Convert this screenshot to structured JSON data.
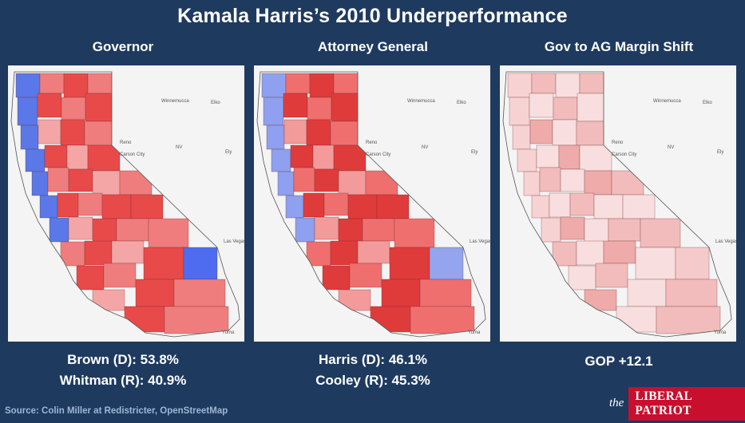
{
  "title": "Kamala Harris’s 2010 Underperformance",
  "panels": [
    {
      "heading": "Governor",
      "results": [
        "Brown (D): 53.8%",
        "Whitman (R): 40.9%"
      ],
      "palette": "partisan"
    },
    {
      "heading": "Attorney General",
      "results": [
        "Harris (D): 46.1%",
        "Cooley (R): 45.3%"
      ],
      "palette": "partisan-red"
    },
    {
      "heading": "Gov to AG Margin Shift",
      "results": [
        "GOP +12.1"
      ],
      "palette": "shift"
    }
  ],
  "map_labels": {
    "winnemucca": "Winnemucca",
    "elko": "Elko",
    "reno": "Reno",
    "carson_city": "Carson City",
    "nv": "NV",
    "ely": "Ely",
    "las_vegas": "Las Vegas",
    "yuma": "Yuma"
  },
  "colors": {
    "background": "#1e3a5f",
    "dem": "#3a5fe0",
    "gop": "#e23a3a",
    "gop_light": "#f5b5b5",
    "brand_red": "#c8102e"
  },
  "source": "Source: Colin Miller at Redistricter, OpenStreetMap",
  "brand": {
    "the": "the",
    "name": "LIBERAL PATRIOT"
  }
}
